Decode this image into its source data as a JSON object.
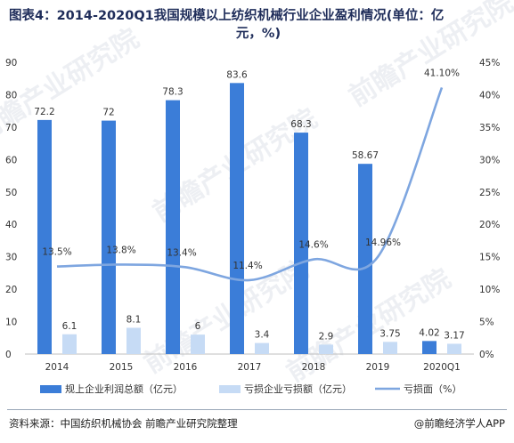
{
  "title_line1": "图表4：2014-2020Q1我国规模以上纺织机械行业企业盈利情况(单位：亿",
  "title_line2": "元，%)",
  "chart_data": {
    "type": "bar",
    "categories": [
      "2014",
      "2015",
      "2016",
      "2017",
      "2018",
      "2019",
      "2020Q1"
    ],
    "series": [
      {
        "name": "规上企业利润总额（亿元）",
        "type": "bar",
        "axis": "left",
        "color": "#3b7dd8",
        "values": [
          72.2,
          72,
          78.3,
          83.6,
          68.3,
          58.67,
          4.02
        ],
        "labels": [
          "72.2",
          "72",
          "78.3",
          "83.6",
          "68.3",
          "58.67",
          "4.02"
        ]
      },
      {
        "name": "亏损企业亏损额（亿元）",
        "type": "bar",
        "axis": "left",
        "color": "#c6dbf5",
        "values": [
          6.1,
          8.1,
          6,
          3.4,
          2.9,
          3.75,
          3.17
        ],
        "labels": [
          "6.1",
          "8.1",
          "6",
          "3.4",
          "2.9",
          "3.75",
          "3.17"
        ]
      },
      {
        "name": "亏损面（%）",
        "type": "line",
        "axis": "right",
        "color": "#7ea6e0",
        "values": [
          13.5,
          13.8,
          13.4,
          11.4,
          14.6,
          14.96,
          41.1
        ],
        "labels": [
          "13.5%",
          "13.8%",
          "13.4%",
          "11.4%",
          "14.6%",
          "14.96%",
          "41.10%"
        ]
      }
    ],
    "y_left": {
      "min": 0,
      "max": 90,
      "ticks": [
        "0",
        "10",
        "20",
        "30",
        "40",
        "50",
        "60",
        "70",
        "80",
        "90"
      ]
    },
    "y_right": {
      "min": 0,
      "max": 45,
      "ticks": [
        "0%",
        "5%",
        "10%",
        "15%",
        "20%",
        "25%",
        "30%",
        "35%",
        "40%",
        "45%"
      ]
    },
    "grid": false,
    "legend_position": "bottom"
  },
  "source": "资料来源：中国纺织机械协会 前瞻产业研究院整理",
  "credit": "@前瞻经济学人APP",
  "watermark": "前瞻产业研究院"
}
